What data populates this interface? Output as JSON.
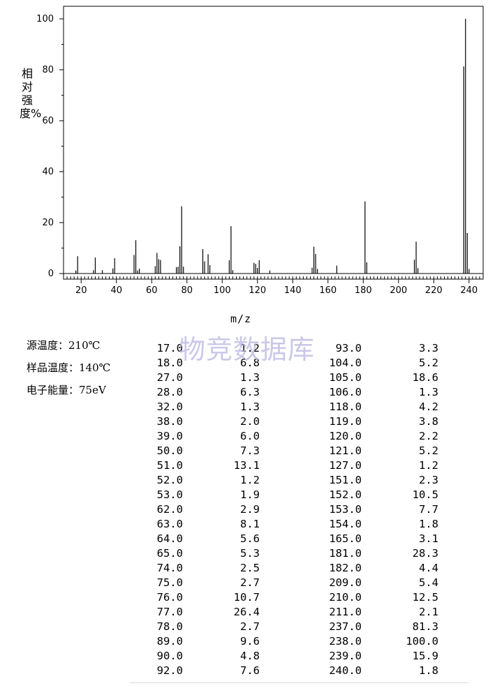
{
  "chart_data": {
    "type": "bar",
    "ylabel": "相对强度%",
    "xlabel": "m/z",
    "xlim": [
      10,
      248
    ],
    "ylim": [
      0,
      105
    ],
    "x_ticks": [
      20,
      40,
      60,
      80,
      100,
      120,
      140,
      160,
      180,
      200,
      220,
      240
    ],
    "y_ticks": [
      0,
      20,
      40,
      60,
      80,
      100
    ],
    "peaks_mz": [
      17,
      18,
      27,
      28,
      32,
      38,
      39,
      50,
      51,
      52,
      53,
      62,
      63,
      64,
      65,
      74,
      75,
      76,
      77,
      78,
      89,
      90,
      92,
      93,
      104,
      105,
      106,
      118,
      119,
      120,
      121,
      127,
      151,
      152,
      153,
      154,
      165,
      181,
      182,
      209,
      210,
      211,
      237,
      238,
      239,
      240
    ],
    "peaks_intensity": [
      1.2,
      6.8,
      1.3,
      6.3,
      1.3,
      2.0,
      6.0,
      7.3,
      13.1,
      1.2,
      1.9,
      2.9,
      8.1,
      5.6,
      5.3,
      2.5,
      2.7,
      10.7,
      26.4,
      2.7,
      9.6,
      4.8,
      7.6,
      3.3,
      5.2,
      18.6,
      1.3,
      4.2,
      3.8,
      2.2,
      5.2,
      1.2,
      2.3,
      10.5,
      7.7,
      1.8,
      3.1,
      28.3,
      4.4,
      5.4,
      12.5,
      2.1,
      81.3,
      100.0,
      15.9,
      1.8
    ]
  },
  "conditions": [
    "源温度：210℃",
    "样品温度：140℃",
    "电子能量：75eV"
  ],
  "watermark": "物竞数据库",
  "table": {
    "rows": [
      [
        "17.0",
        "1.2",
        "93.0",
        "3.3"
      ],
      [
        "18.0",
        "6.8",
        "104.0",
        "5.2"
      ],
      [
        "27.0",
        "1.3",
        "105.0",
        "18.6"
      ],
      [
        "28.0",
        "6.3",
        "106.0",
        "1.3"
      ],
      [
        "32.0",
        "1.3",
        "118.0",
        "4.2"
      ],
      [
        "38.0",
        "2.0",
        "119.0",
        "3.8"
      ],
      [
        "39.0",
        "6.0",
        "120.0",
        "2.2"
      ],
      [
        "50.0",
        "7.3",
        "121.0",
        "5.2"
      ],
      [
        "51.0",
        "13.1",
        "127.0",
        "1.2"
      ],
      [
        "52.0",
        "1.2",
        "151.0",
        "2.3"
      ],
      [
        "53.0",
        "1.9",
        "152.0",
        "10.5"
      ],
      [
        "62.0",
        "2.9",
        "153.0",
        "7.7"
      ],
      [
        "63.0",
        "8.1",
        "154.0",
        "1.8"
      ],
      [
        "64.0",
        "5.6",
        "165.0",
        "3.1"
      ],
      [
        "65.0",
        "5.3",
        "181.0",
        "28.3"
      ],
      [
        "74.0",
        "2.5",
        "182.0",
        "4.4"
      ],
      [
        "75.0",
        "2.7",
        "209.0",
        "5.4"
      ],
      [
        "76.0",
        "10.7",
        "210.0",
        "12.5"
      ],
      [
        "77.0",
        "26.4",
        "211.0",
        "2.1"
      ],
      [
        "78.0",
        "2.7",
        "237.0",
        "81.3"
      ],
      [
        "89.0",
        "9.6",
        "238.0",
        "100.0"
      ],
      [
        "90.0",
        "4.8",
        "239.0",
        "15.9"
      ],
      [
        "92.0",
        "7.6",
        "240.0",
        "1.8"
      ]
    ]
  }
}
